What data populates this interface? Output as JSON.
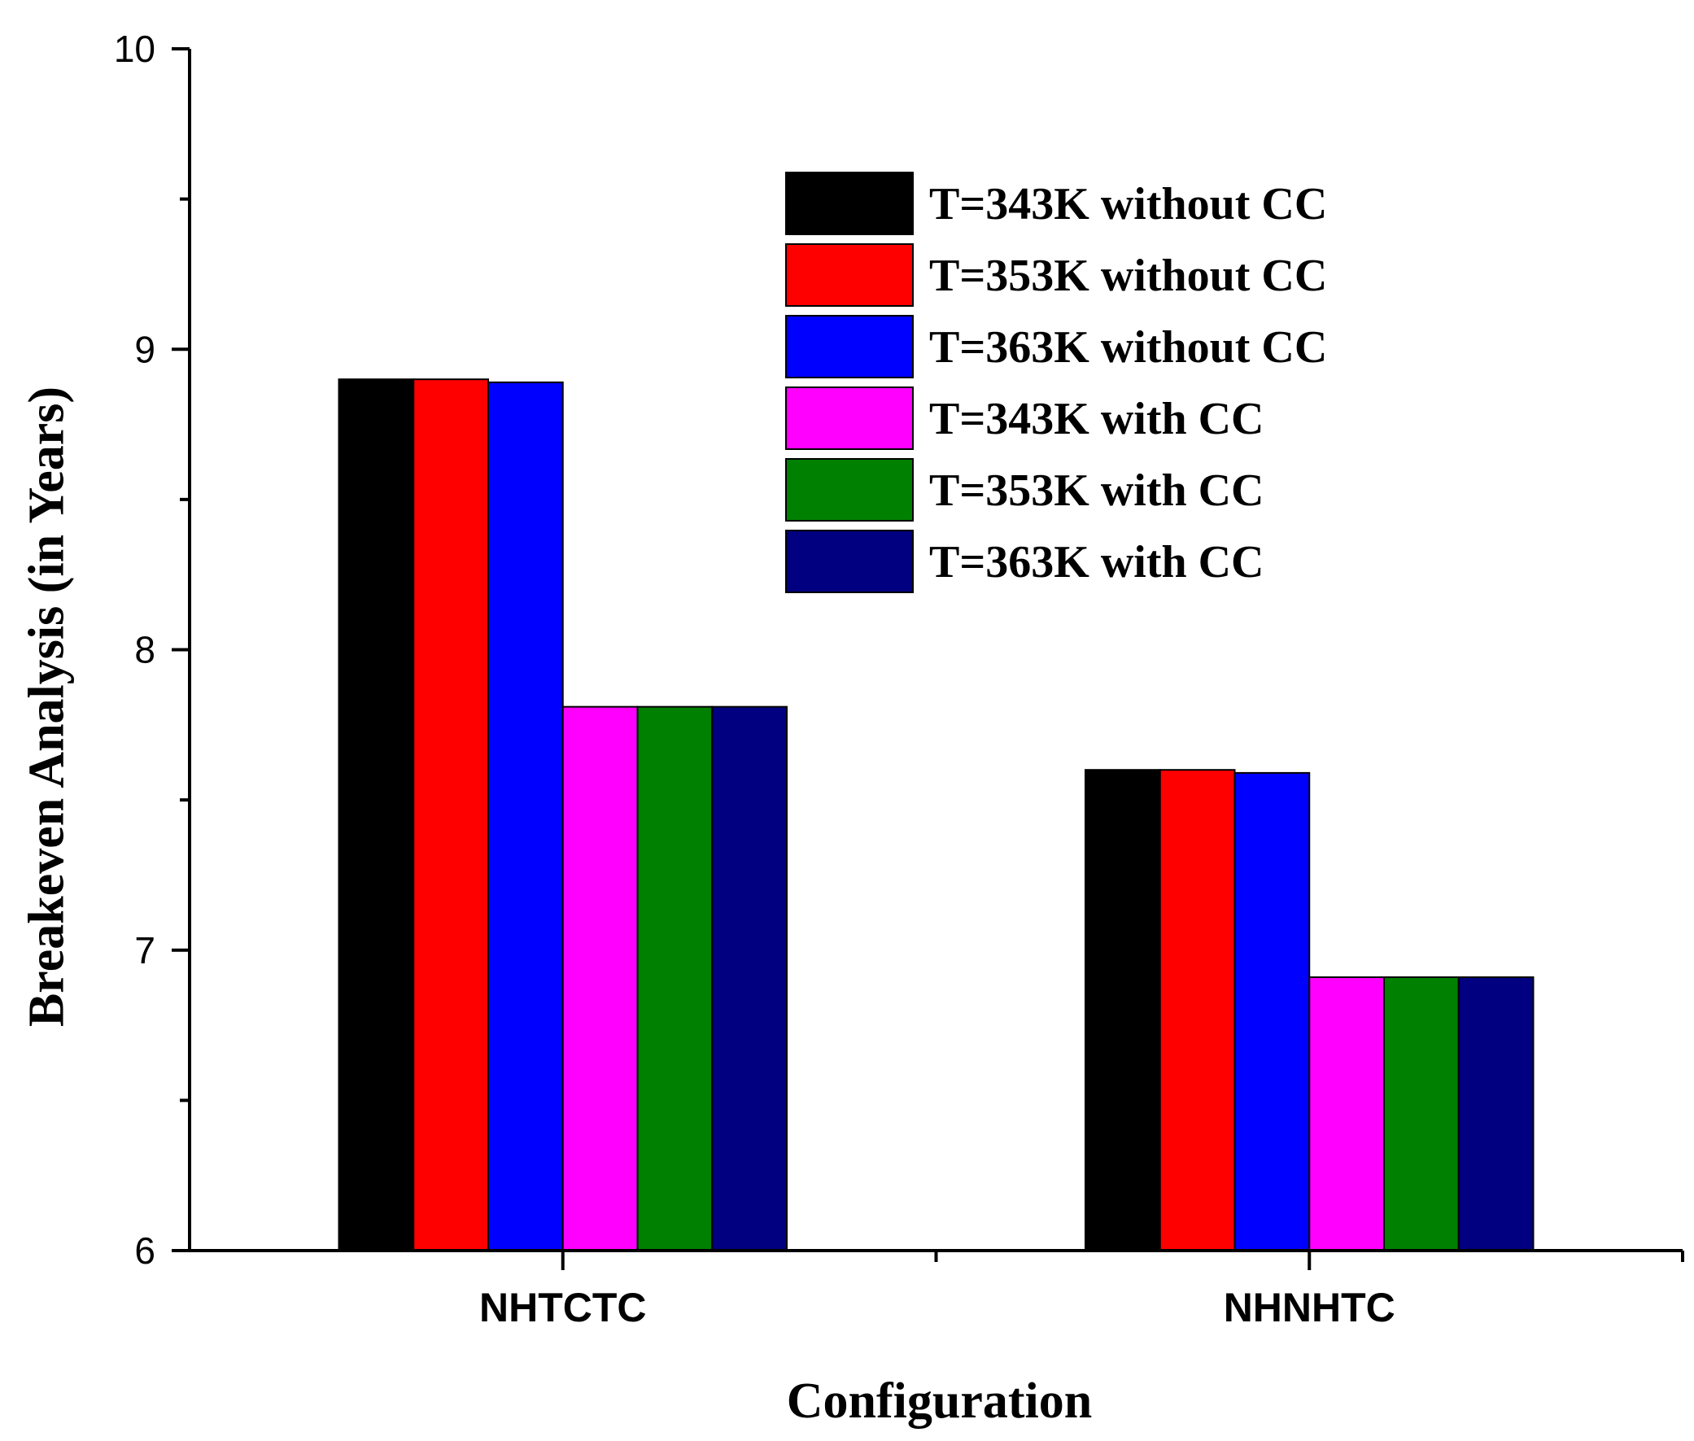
{
  "chart_data": {
    "type": "bar",
    "title": "",
    "xlabel": "Configuration",
    "ylabel": "Breakeven Analysis (in Years)",
    "categories": [
      "NHTCTC",
      "NHNHTC"
    ],
    "ylim": [
      6,
      10
    ],
    "yticks": [
      6,
      7,
      8,
      9,
      10
    ],
    "yticks_labels": [
      "6",
      "7",
      "8",
      "9",
      "10"
    ],
    "grid": false,
    "legend_position": "top-right",
    "series": [
      {
        "name": "T=343K without CC",
        "color": "#000000",
        "values": [
          8.9,
          7.6
        ]
      },
      {
        "name": "T=353K without CC",
        "color": "#ff0000",
        "values": [
          8.9,
          7.6
        ]
      },
      {
        "name": "T=363K without CC",
        "color": "#0000ff",
        "values": [
          8.89,
          7.59
        ]
      },
      {
        "name": "T=343K with CC",
        "color": "#ff00ff",
        "values": [
          7.81,
          6.91
        ]
      },
      {
        "name": "T=353K with CC",
        "color": "#008000",
        "values": [
          7.81,
          6.91
        ]
      },
      {
        "name": "T=363K with CC",
        "color": "#000080",
        "values": [
          7.81,
          6.91
        ]
      }
    ]
  }
}
